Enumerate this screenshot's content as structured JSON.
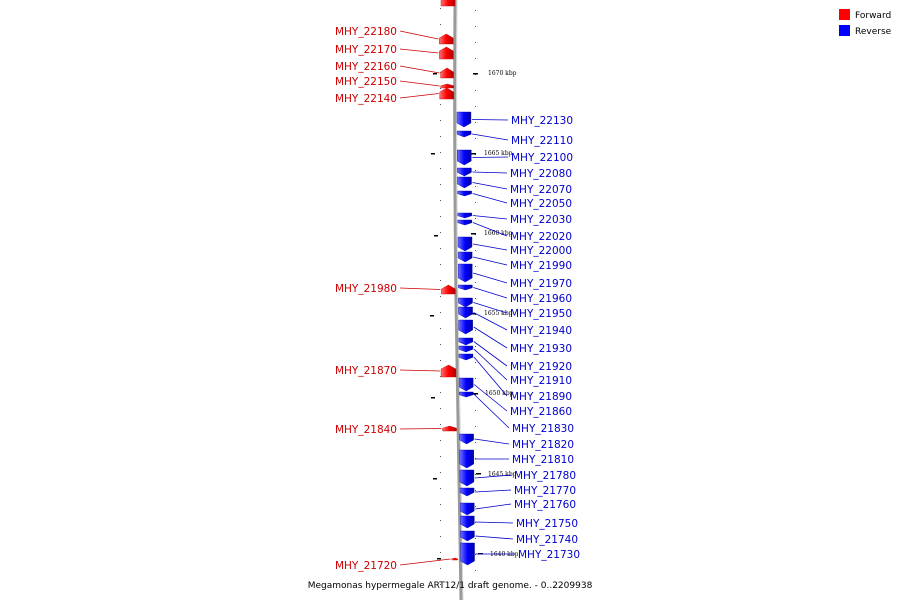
{
  "legend": [
    {
      "label": "Forward",
      "color": "#ff0000"
    },
    {
      "label": "Reverse",
      "color": "#0000ff"
    }
  ],
  "caption": "Megamonas hypermegale ART12/1 draft genome. - 0..2209938",
  "kbp_marks": [
    "1670 kbp",
    "1665 kbp",
    "1660 kbp",
    "1655 kbp",
    "1650 kbp",
    "1645 kbp",
    "1640 kbp"
  ],
  "forward_genes": [
    "MHY_22180",
    "MHY_22170",
    "MHY_22160",
    "MHY_22150",
    "MHY_22140",
    "MHY_21980",
    "MHY_21870",
    "MHY_21840",
    "MHY_21720"
  ],
  "reverse_genes": [
    "MHY_22130",
    "MHY_22110",
    "MHY_22100",
    "MHY_22080",
    "MHY_22070",
    "MHY_22050",
    "MHY_22030",
    "MHY_22020",
    "MHY_22000",
    "MHY_21990",
    "MHY_21970",
    "MHY_21960",
    "MHY_21950",
    "MHY_21940",
    "MHY_21930",
    "MHY_21920",
    "MHY_21910",
    "MHY_21890",
    "MHY_21860",
    "MHY_21830",
    "MHY_21820",
    "MHY_21810",
    "MHY_21780",
    "MHY_21770",
    "MHY_21760",
    "MHY_21750",
    "MHY_21740",
    "MHY_21730"
  ],
  "colors": {
    "forward": "#ff0000",
    "reverse": "#0000ff",
    "axis": "#999999"
  }
}
